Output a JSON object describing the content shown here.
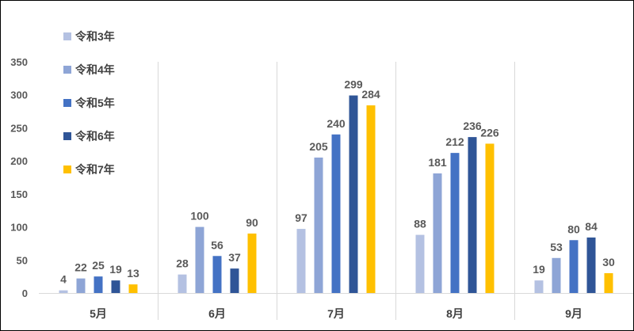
{
  "chart_data": {
    "type": "bar",
    "categories": [
      "5月",
      "6月",
      "7月",
      "8月",
      "9月"
    ],
    "series": [
      {
        "name": "令和3年",
        "color": "#b4c1e2",
        "values": [
          4,
          28,
          97,
          88,
          19
        ]
      },
      {
        "name": "令和4年",
        "color": "#8ea5d6",
        "values": [
          22,
          100,
          205,
          181,
          53
        ]
      },
      {
        "name": "令和5年",
        "color": "#4472c4",
        "values": [
          25,
          56,
          240,
          212,
          80
        ]
      },
      {
        "name": "令和6年",
        "color": "#2f5597",
        "values": [
          19,
          37,
          299,
          236,
          84
        ]
      },
      {
        "name": "令和7年",
        "color": "#ffc000",
        "values": [
          13,
          90,
          284,
          226,
          30
        ]
      }
    ],
    "ylim": [
      0,
      350
    ],
    "yticks": [
      0,
      50,
      100,
      150,
      200,
      250,
      300,
      350
    ],
    "grid": "vertical category separators",
    "legend": "top-left, vertical",
    "data_labels": true
  }
}
